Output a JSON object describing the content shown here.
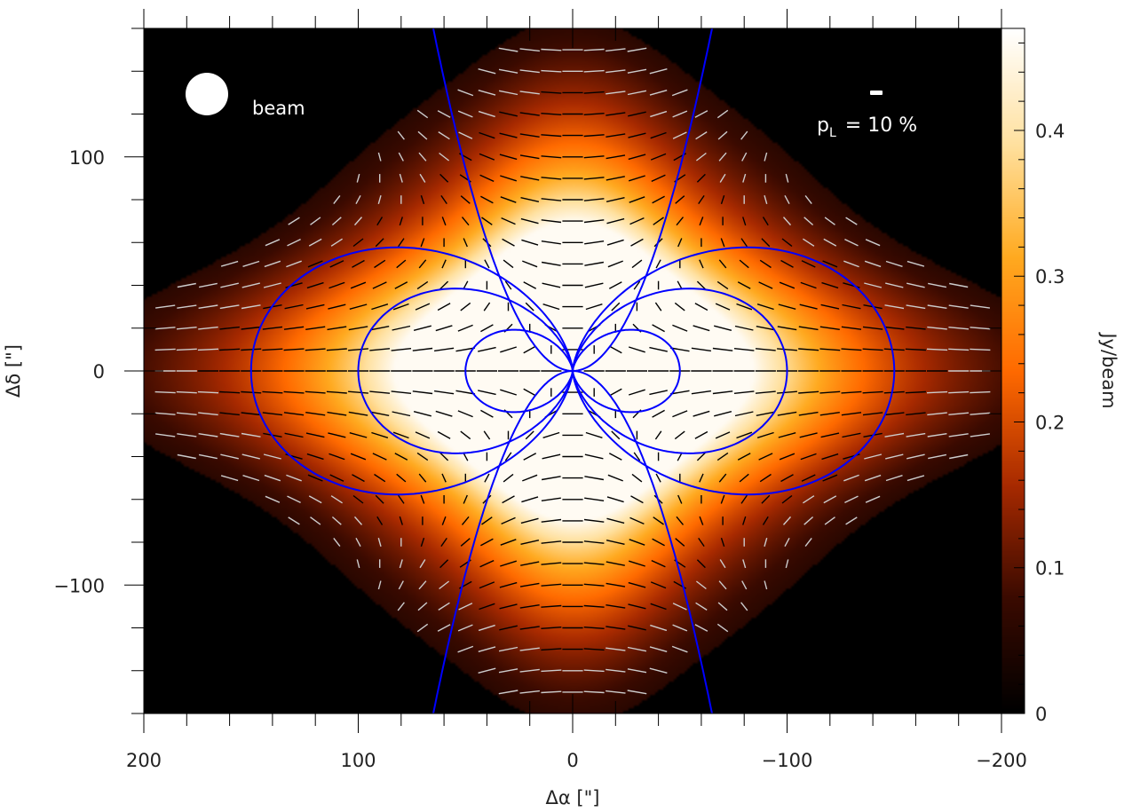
{
  "chart_data": {
    "type": "heatmap",
    "title": "",
    "xlabel": "Δα [\"]",
    "ylabel": "Δδ [\"]",
    "colorbar_label": "Jy/beam",
    "xlim": [
      200,
      -200
    ],
    "ylim": [
      -160,
      160
    ],
    "x_ticks": [
      200,
      100,
      0,
      -100,
      -200
    ],
    "x_tick_labels": [
      "200",
      "100",
      "0",
      "−100",
      "−200"
    ],
    "y_ticks": [
      100,
      0,
      -100
    ],
    "y_tick_labels": [
      "100",
      "0",
      "−100"
    ],
    "colorbar_range": [
      0,
      0.47
    ],
    "colorbar_ticks": [
      0,
      0.1,
      0.2,
      0.3,
      0.4
    ],
    "colorbar_tick_labels": [
      "0",
      "0.1",
      "0.2",
      "0.3",
      "0.4"
    ],
    "colormap": [
      "#000000",
      "#3a0a00",
      "#a82a00",
      "#ff6a00",
      "#ffaa20",
      "#ffe1a0",
      "#ffffff"
    ],
    "peak_intensity": 0.46,
    "field_line_color": "#0000ff",
    "vector_colors": {
      "high_intensity": "#000000",
      "low_intensity": "#cccccc"
    },
    "beam_label": "beam",
    "pol_scale_label": "p",
    "pol_scale_subscript": "L",
    "pol_scale_value": "= 10 %",
    "pol_scale_percent": 10,
    "field_line_loop_widths": [
      50,
      100,
      150
    ],
    "open_field_line_x_at_edge": 65
  }
}
